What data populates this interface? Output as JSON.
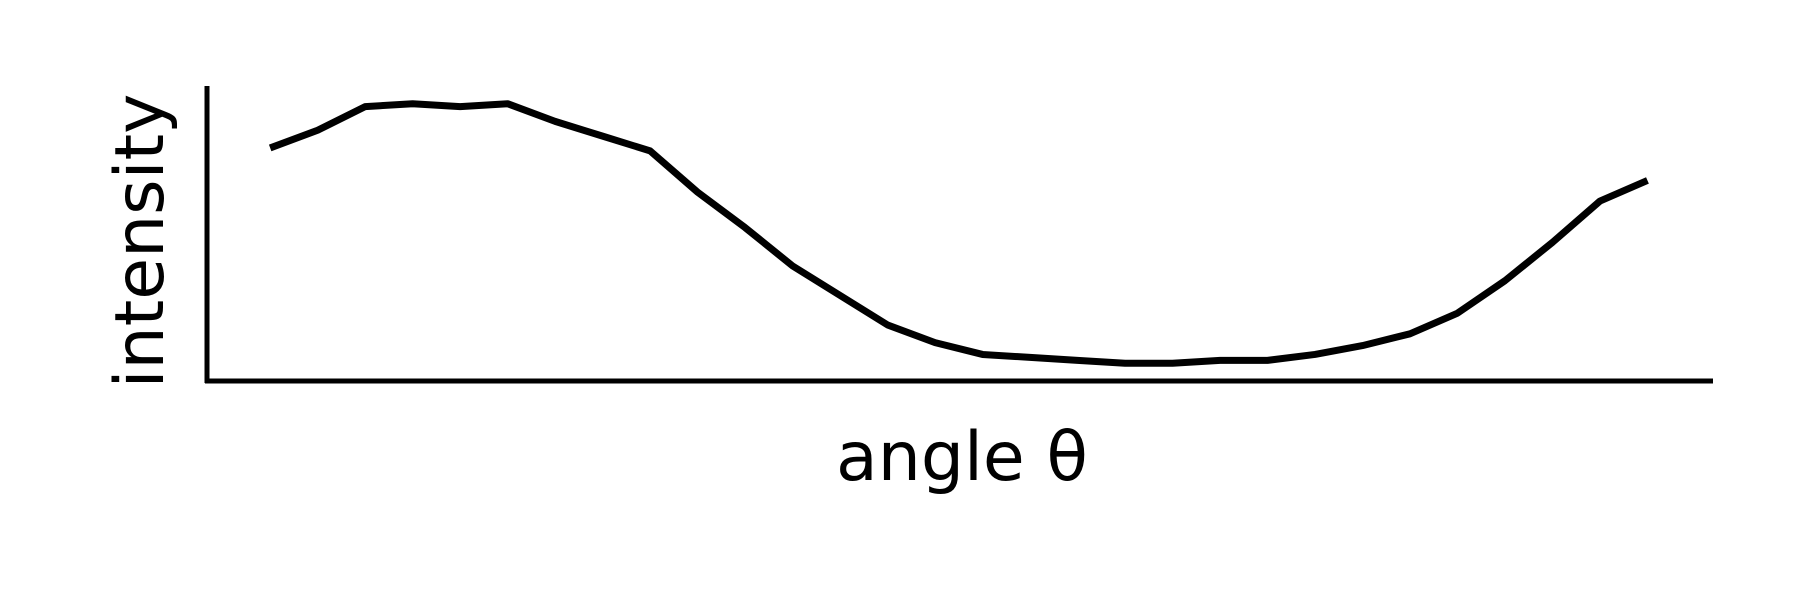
{
  "chart_data": {
    "type": "line",
    "xlabel": "angle θ",
    "ylabel": "intensity",
    "x": [
      0,
      1,
      2,
      3,
      4,
      5,
      6,
      7,
      8,
      9,
      10,
      11,
      12,
      13,
      14,
      15,
      16,
      17,
      18,
      19,
      20,
      21,
      22,
      23,
      24,
      25,
      26,
      27,
      28,
      29
    ],
    "series": [
      {
        "color": "#000000",
        "values": [
          0.79,
          0.85,
          0.93,
          0.94,
          0.93,
          0.94,
          0.88,
          0.83,
          0.78,
          0.64,
          0.52,
          0.39,
          0.29,
          0.19,
          0.13,
          0.09,
          0.08,
          0.07,
          0.06,
          0.06,
          0.07,
          0.07,
          0.09,
          0.12,
          0.16,
          0.23,
          0.34,
          0.47,
          0.61,
          0.68
        ]
      }
    ],
    "xlim": [
      -1.33,
      30.38
    ],
    "ylim": [
      0,
      1
    ],
    "xticks": [],
    "yticks": [],
    "grid": false
  }
}
